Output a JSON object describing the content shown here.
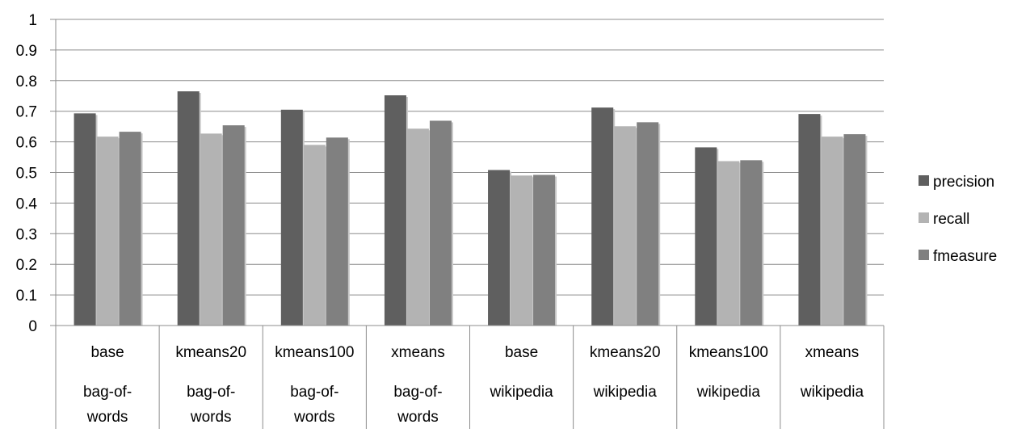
{
  "chart_data": {
    "type": "bar",
    "title": "",
    "xlabel": "",
    "ylabel": "",
    "ylim": [
      0,
      1
    ],
    "yticks": [
      "0",
      "0.1",
      "0.2",
      "0.3",
      "0.4",
      "0.5",
      "0.6",
      "0.7",
      "0.8",
      "0.9",
      "1"
    ],
    "grid": true,
    "legend_position": "right",
    "categories": [
      {
        "method": "base",
        "source_lines": [
          "bag-of-",
          "words"
        ]
      },
      {
        "method": "kmeans20",
        "source_lines": [
          "bag-of-",
          "words"
        ]
      },
      {
        "method": "kmeans100",
        "source_lines": [
          "bag-of-",
          "words"
        ]
      },
      {
        "method": "xmeans",
        "source_lines": [
          "bag-of-",
          "words"
        ]
      },
      {
        "method": "base",
        "source_lines": [
          "wikipedia"
        ]
      },
      {
        "method": "kmeans20",
        "source_lines": [
          "wikipedia"
        ]
      },
      {
        "method": "kmeans100",
        "source_lines": [
          "wikipedia"
        ]
      },
      {
        "method": "xmeans",
        "source_lines": [
          "wikipedia"
        ]
      }
    ],
    "series": [
      {
        "name": "precision",
        "color": "#5f5f5f",
        "values": [
          0.693,
          0.765,
          0.705,
          0.752,
          0.508,
          0.712,
          0.582,
          0.691
        ]
      },
      {
        "name": "recall",
        "color": "#b3b3b3",
        "values": [
          0.617,
          0.627,
          0.59,
          0.643,
          0.49,
          0.651,
          0.537,
          0.617
        ]
      },
      {
        "name": "fmeasure",
        "color": "#808080",
        "values": [
          0.633,
          0.654,
          0.614,
          0.669,
          0.492,
          0.664,
          0.54,
          0.625
        ]
      }
    ]
  }
}
